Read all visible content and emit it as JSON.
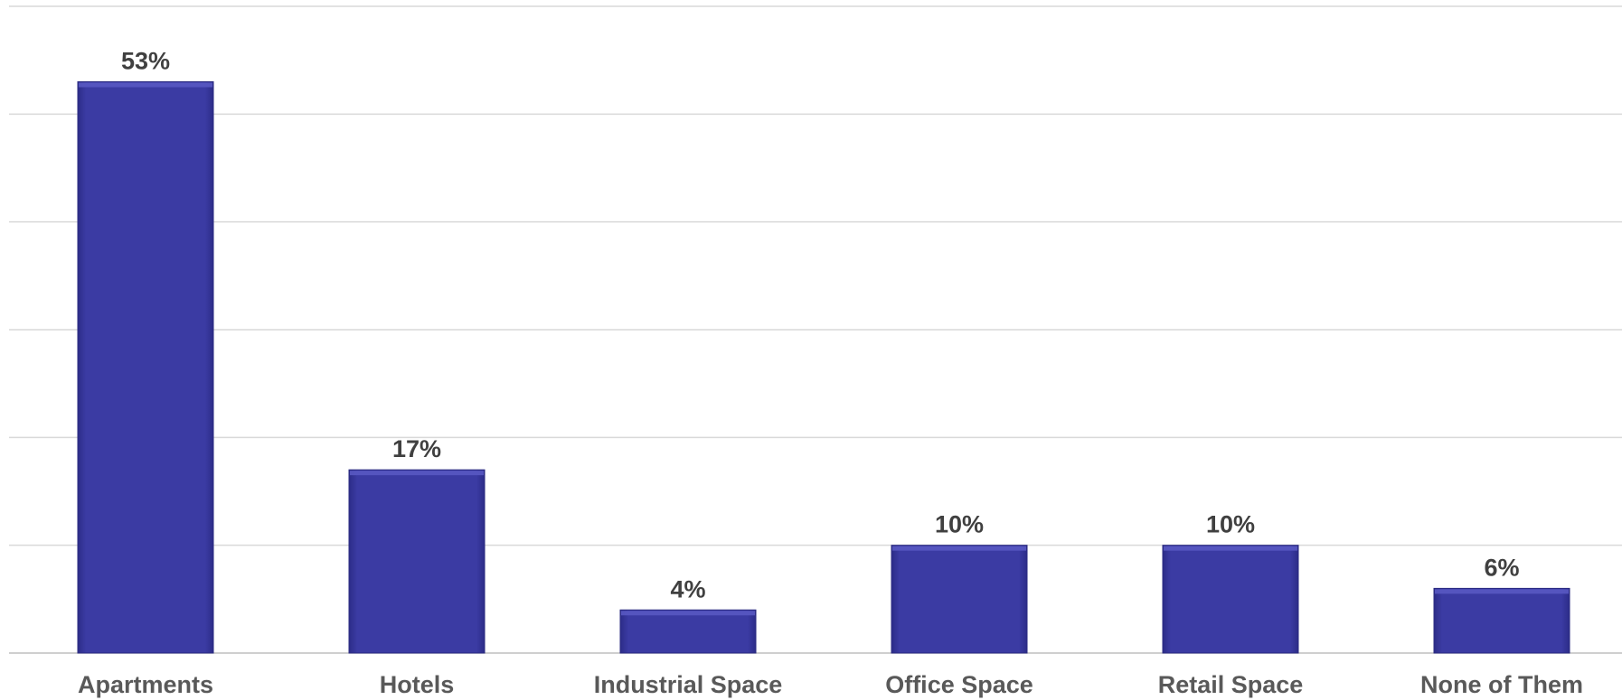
{
  "chart_data": {
    "type": "bar",
    "categories": [
      "Apartments",
      "Hotels",
      "Industrial Space",
      "Office Space",
      "Retail Space",
      "None of Them"
    ],
    "values": [
      53,
      17,
      4,
      10,
      10,
      6
    ],
    "value_labels": [
      "53%",
      "17%",
      "4%",
      "10%",
      "10%",
      "6%"
    ],
    "ylim": [
      0,
      60
    ],
    "grid": true,
    "gridline_step": 10,
    "title": "",
    "xlabel": "",
    "ylabel": "",
    "bar_color": "#3b3ba3"
  }
}
